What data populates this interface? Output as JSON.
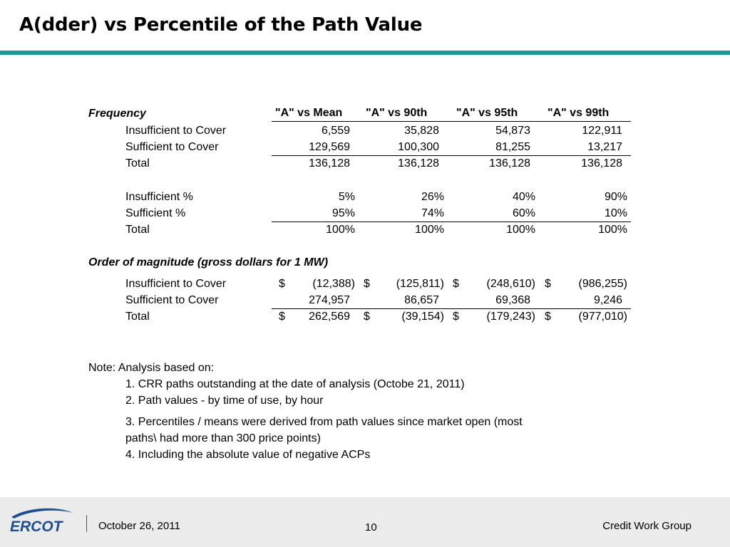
{
  "title": "A(dder) vs Percentile of the Path Value",
  "headers": [
    "\"A\" vs Mean",
    "\"A\" vs 90th",
    "\"A\" vs 95th",
    "\"A\" vs 99th"
  ],
  "frequency": {
    "section_label": "Frequency",
    "rows": [
      {
        "label": "Insufficient to Cover",
        "values": [
          "6,559",
          "35,828",
          "54,873",
          "122,911"
        ]
      },
      {
        "label": "Sufficient to Cover",
        "values": [
          "129,569",
          "100,300",
          "81,255",
          "13,217"
        ]
      },
      {
        "label": "Total",
        "values": [
          "136,128",
          "136,128",
          "136,128",
          "136,128"
        ]
      }
    ]
  },
  "percent": {
    "rows": [
      {
        "label": "Insufficient %",
        "values": [
          "5%",
          "26%",
          "40%",
          "90%"
        ]
      },
      {
        "label": "Sufficient %",
        "values": [
          "95%",
          "74%",
          "60%",
          "10%"
        ]
      },
      {
        "label": "Total",
        "values": [
          "100%",
          "100%",
          "100%",
          "100%"
        ]
      }
    ]
  },
  "magnitude": {
    "section_label": "Order of magnitude (gross dollars for 1 MW)",
    "currency_symbol": "$",
    "rows": [
      {
        "label": "Insufficient to Cover",
        "values": [
          "(12,388)",
          "(125,811)",
          "(248,610)",
          "(986,255)"
        ]
      },
      {
        "label": "Sufficient to Cover",
        "values": [
          "274,957",
          "86,657",
          "69,368",
          "9,246"
        ]
      },
      {
        "label": "Total",
        "values": [
          "262,569",
          "(39,154)",
          "(179,243)",
          "(977,010)"
        ]
      }
    ]
  },
  "notes": {
    "intro": "Note:  Analysis based on:",
    "items": [
      "1.  CRR paths outstanding at the date of analysis (Octobe 21, 2011)",
      "2.  Path values - by time of use, by hour",
      "3.  Percentiles / means were derived from path values since market open (most",
      "paths\\ had more than 300 price points)",
      "4.  Including the absolute value of negative ACPs"
    ]
  },
  "footer": {
    "logo_text": "ERCOT",
    "date": "October 26, 2011",
    "page": "10",
    "group": "Credit Work Group"
  },
  "colors": {
    "accent_rule": "#1a9a95",
    "logo_blue": "#1f4e8c",
    "footer_bg": "#ebebeb"
  }
}
